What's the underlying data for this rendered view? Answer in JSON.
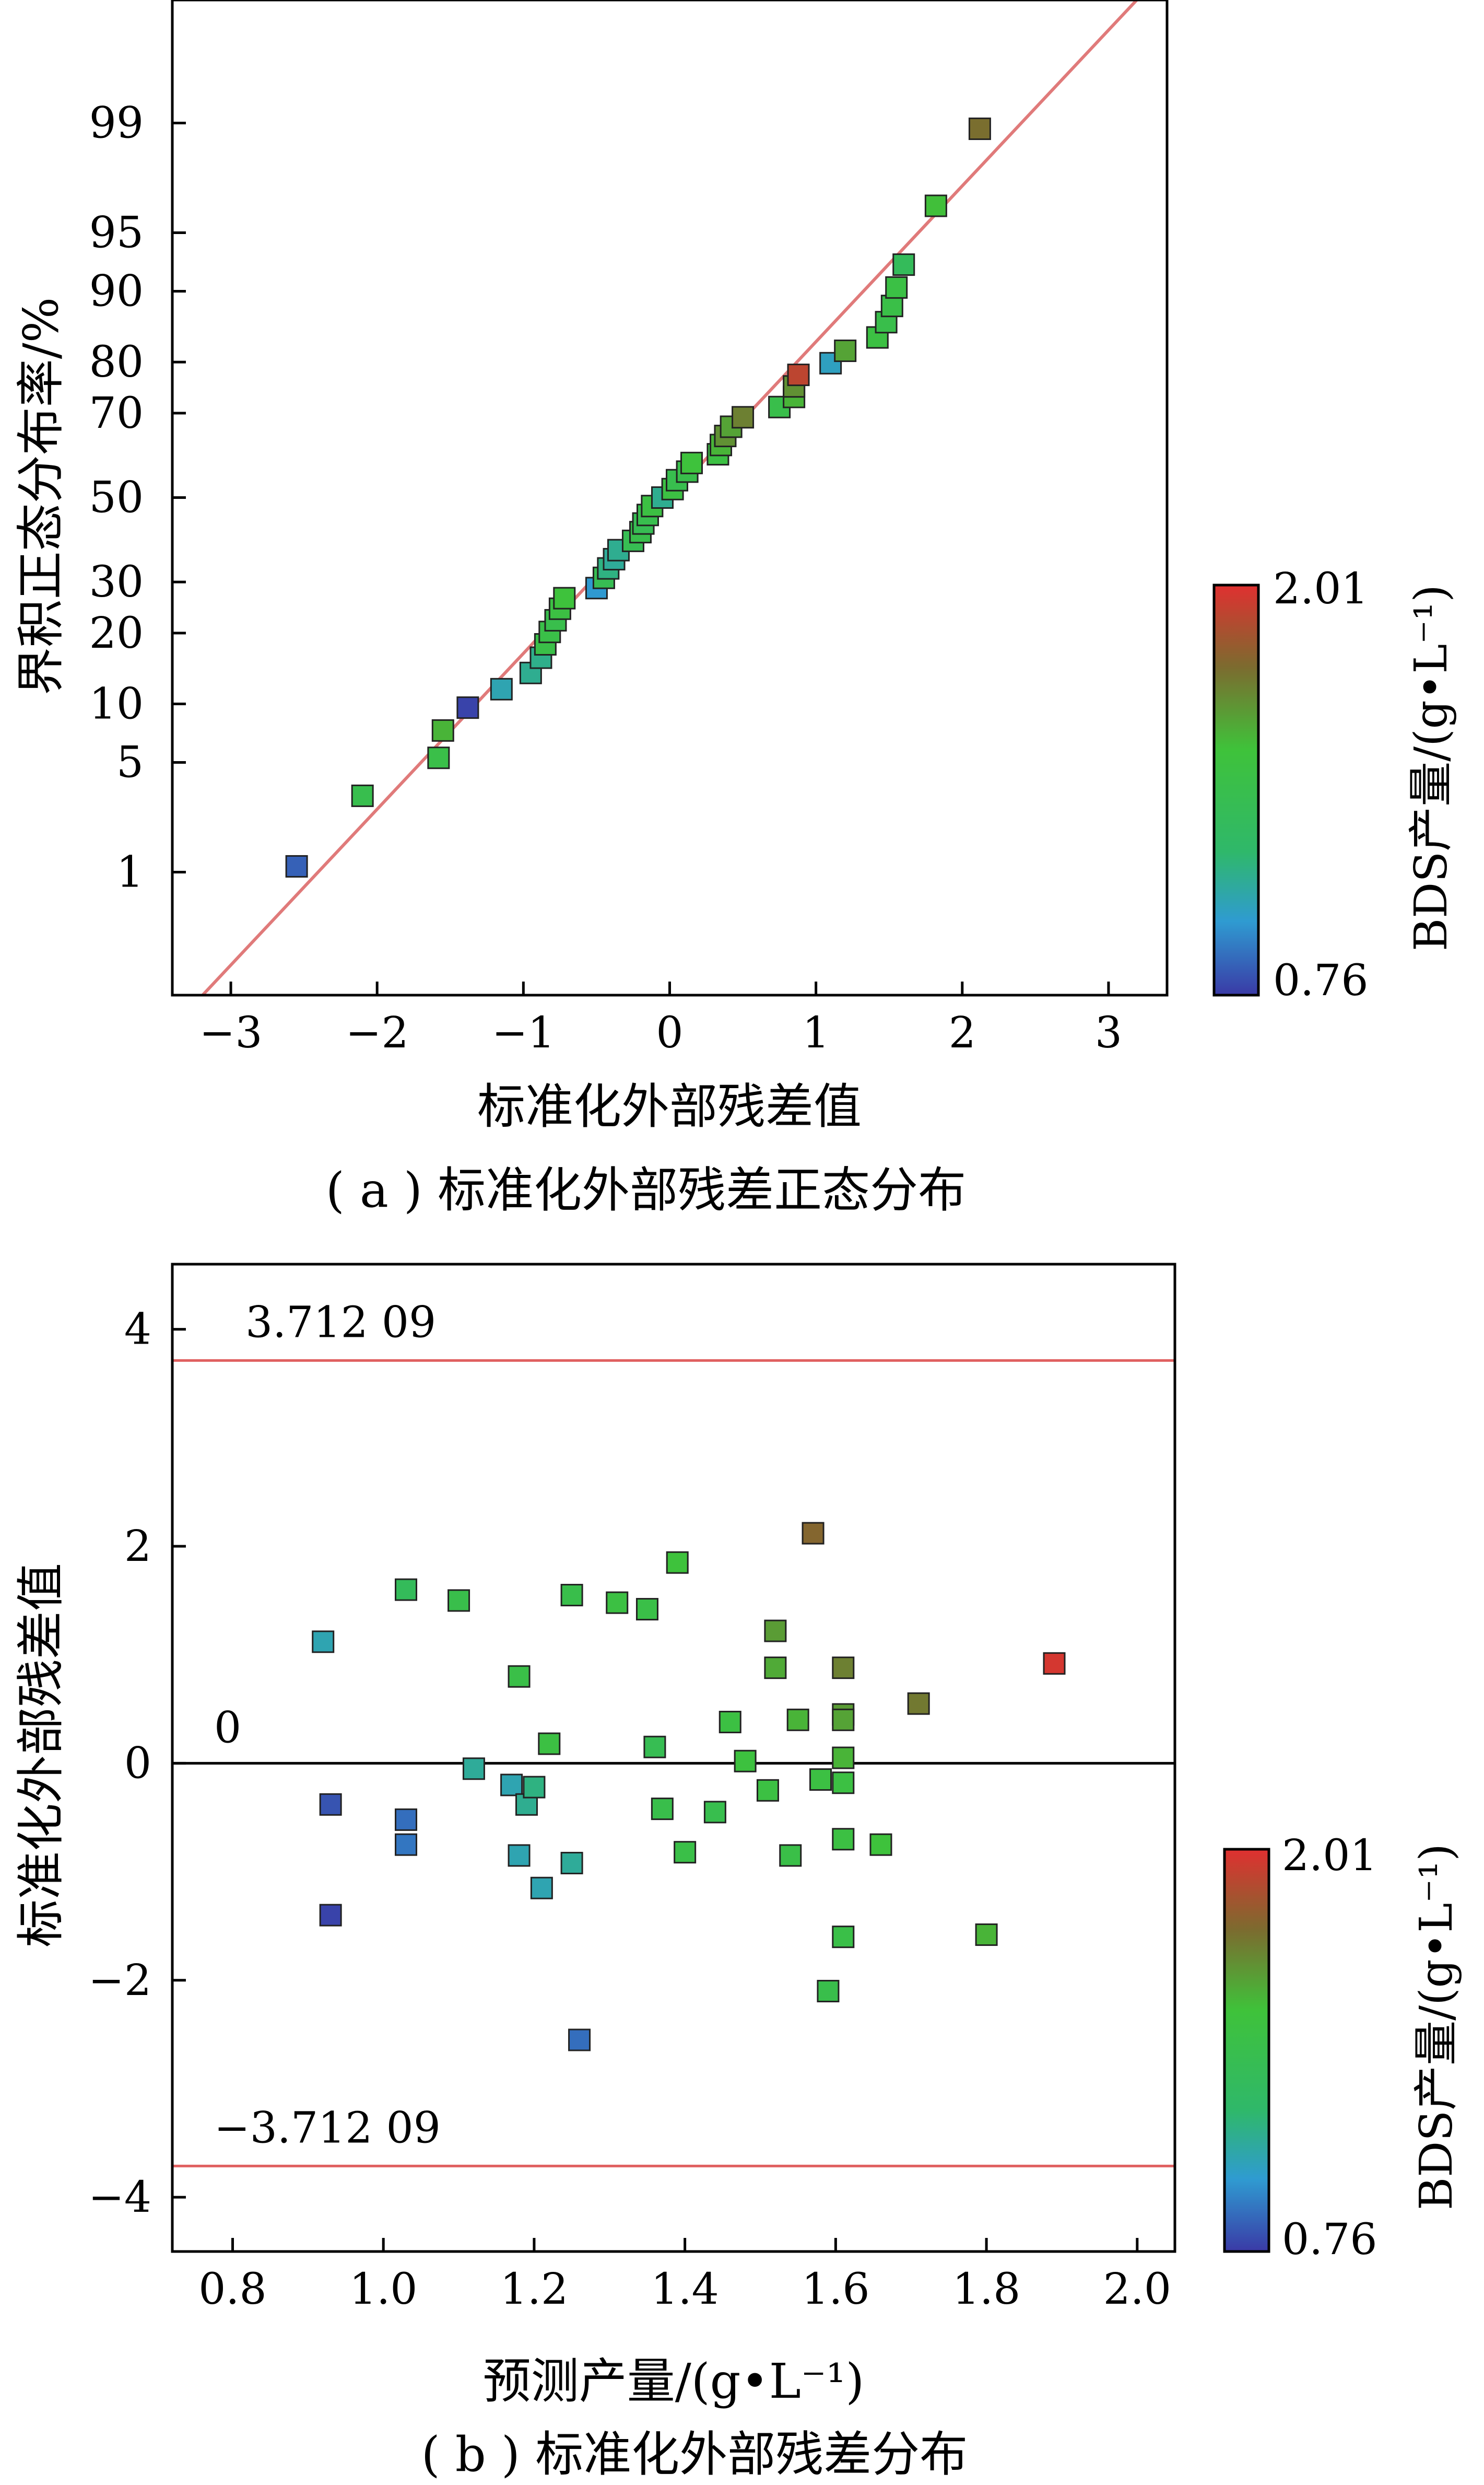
{
  "colorbar": {
    "title": "BDS产量/(g•L⁻¹)",
    "min": 0.76,
    "max": 2.01,
    "min_label": "0.76",
    "max_label": "2.01",
    "colors": [
      "#3a3aa6",
      "#2f9bd1",
      "#2fb86a",
      "#3fc23a",
      "#7c6b2f",
      "#e03030"
    ]
  },
  "chart_data": [
    {
      "type": "scatter",
      "caption": "( a ) 标准化外部残差正态分布",
      "xlabel": "标准化外部残差值",
      "ylabel": "界积正态分布率/%",
      "xlim": [
        -3.4,
        3.4
      ],
      "x_ticks": [
        -3,
        -2,
        -1,
        0,
        1,
        2,
        3
      ],
      "x_tick_labels": [
        "−3",
        "−2",
        "−1",
        "0",
        "1",
        "2",
        "3"
      ],
      "y_scale": "normal-probability",
      "ylim": [
        0.1,
        99.9
      ],
      "y_ticks": [
        1,
        5,
        10,
        20,
        30,
        50,
        70,
        80,
        90,
        95,
        99
      ],
      "y_tick_labels": [
        "1",
        "5",
        "10",
        "20",
        "30",
        "50",
        "70",
        "80",
        "90",
        "95",
        "99"
      ],
      "reference_line": {
        "x": [
          -3.4,
          3.4
        ],
        "y": [
          0.05,
          99.95
        ],
        "color": "#e07a7a"
      },
      "points": [
        {
          "x": -2.55,
          "y": 1.1,
          "c": 0.85
        },
        {
          "x": -2.1,
          "y": 3.2,
          "c": 1.38
        },
        {
          "x": -1.58,
          "y": 5.3,
          "c": 1.41
        },
        {
          "x": -1.55,
          "y": 7.4,
          "c": 1.55
        },
        {
          "x": -1.38,
          "y": 9.6,
          "c": 0.78
        },
        {
          "x": -1.15,
          "y": 11.7,
          "c": 1.05
        },
        {
          "x": -0.95,
          "y": 13.8,
          "c": 1.12
        },
        {
          "x": -0.88,
          "y": 16.0,
          "c": 1.13
        },
        {
          "x": -0.85,
          "y": 18.1,
          "c": 1.42
        },
        {
          "x": -0.82,
          "y": 20.2,
          "c": 1.42
        },
        {
          "x": -0.78,
          "y": 22.3,
          "c": 1.39
        },
        {
          "x": -0.75,
          "y": 24.5,
          "c": 1.45
        },
        {
          "x": -0.72,
          "y": 26.6,
          "c": 1.5
        },
        {
          "x": -0.5,
          "y": 28.7,
          "c": 0.98
        },
        {
          "x": -0.45,
          "y": 30.9,
          "c": 1.35
        },
        {
          "x": -0.42,
          "y": 33.0,
          "c": 1.15
        },
        {
          "x": -0.38,
          "y": 35.1,
          "c": 1.1
        },
        {
          "x": -0.35,
          "y": 37.2,
          "c": 1.12
        },
        {
          "x": -0.25,
          "y": 39.4,
          "c": 1.35
        },
        {
          "x": -0.2,
          "y": 41.5,
          "c": 1.4
        },
        {
          "x": -0.18,
          "y": 43.6,
          "c": 1.35
        },
        {
          "x": -0.15,
          "y": 45.7,
          "c": 1.38
        },
        {
          "x": -0.12,
          "y": 47.9,
          "c": 1.45
        },
        {
          "x": -0.05,
          "y": 50.0,
          "c": 1.12
        },
        {
          "x": 0.02,
          "y": 52.1,
          "c": 1.45
        },
        {
          "x": 0.05,
          "y": 54.3,
          "c": 1.38
        },
        {
          "x": 0.12,
          "y": 56.4,
          "c": 1.4
        },
        {
          "x": 0.15,
          "y": 58.5,
          "c": 1.5
        },
        {
          "x": 0.33,
          "y": 60.6,
          "c": 1.45
        },
        {
          "x": 0.35,
          "y": 62.8,
          "c": 1.55
        },
        {
          "x": 0.38,
          "y": 64.9,
          "c": 1.65
        },
        {
          "x": 0.42,
          "y": 67.0,
          "c": 1.6
        },
        {
          "x": 0.5,
          "y": 69.1,
          "c": 1.7
        },
        {
          "x": 0.75,
          "y": 71.3,
          "c": 1.4
        },
        {
          "x": 0.85,
          "y": 73.4,
          "c": 1.55
        },
        {
          "x": 0.85,
          "y": 75.5,
          "c": 1.65
        },
        {
          "x": 0.88,
          "y": 77.7,
          "c": 1.92
        },
        {
          "x": 1.1,
          "y": 79.8,
          "c": 1.02
        },
        {
          "x": 1.2,
          "y": 81.9,
          "c": 1.6
        },
        {
          "x": 1.42,
          "y": 84.0,
          "c": 1.45
        },
        {
          "x": 1.48,
          "y": 86.2,
          "c": 1.4
        },
        {
          "x": 1.52,
          "y": 88.3,
          "c": 1.42
        },
        {
          "x": 1.55,
          "y": 90.4,
          "c": 1.44
        },
        {
          "x": 1.6,
          "y": 92.6,
          "c": 1.3
        },
        {
          "x": 1.82,
          "y": 96.5,
          "c": 1.52
        },
        {
          "x": 2.12,
          "y": 98.9,
          "c": 1.75
        }
      ]
    },
    {
      "type": "scatter",
      "caption": "( b ) 标准化外部残差分布",
      "xlabel": "预测产量/(g•L⁻¹)",
      "ylabel": "标准化外部残差值",
      "xlim": [
        0.72,
        2.05
      ],
      "ylim": [
        -4.5,
        4.6
      ],
      "x_ticks": [
        0.8,
        1.0,
        1.2,
        1.4,
        1.6,
        1.8,
        2.0
      ],
      "x_tick_labels": [
        "0.8",
        "1.0",
        "1.2",
        "1.4",
        "1.6",
        "1.8",
        "2.0"
      ],
      "y_ticks": [
        -4,
        -2,
        0,
        2,
        4
      ],
      "y_tick_labels": [
        "−4",
        "−2",
        "0",
        "2",
        "4"
      ],
      "reference_lines": [
        {
          "y": 3.71209,
          "label": "3.712 09",
          "color": "#e06060"
        },
        {
          "y": 0,
          "label": "0",
          "color": "#000000"
        },
        {
          "y": -3.71209,
          "label": "−3.712 09",
          "color": "#e06060"
        }
      ],
      "points": [
        {
          "x": 0.92,
          "y": 1.12,
          "c": 1.05
        },
        {
          "x": 0.93,
          "y": -0.38,
          "c": 0.82
        },
        {
          "x": 0.93,
          "y": -1.4,
          "c": 0.78
        },
        {
          "x": 1.03,
          "y": 1.6,
          "c": 1.3
        },
        {
          "x": 1.03,
          "y": -0.52,
          "c": 0.88
        },
        {
          "x": 1.03,
          "y": -0.75,
          "c": 0.9
        },
        {
          "x": 1.1,
          "y": 1.5,
          "c": 1.4
        },
        {
          "x": 1.12,
          "y": -0.05,
          "c": 1.1
        },
        {
          "x": 1.17,
          "y": -0.2,
          "c": 1.05
        },
        {
          "x": 1.18,
          "y": 0.8,
          "c": 1.42
        },
        {
          "x": 1.18,
          "y": -0.85,
          "c": 1.05
        },
        {
          "x": 1.19,
          "y": -0.38,
          "c": 1.12
        },
        {
          "x": 1.2,
          "y": -0.22,
          "c": 1.15
        },
        {
          "x": 1.21,
          "y": -1.15,
          "c": 1.05
        },
        {
          "x": 1.22,
          "y": 0.18,
          "c": 1.45
        },
        {
          "x": 1.25,
          "y": 1.55,
          "c": 1.4
        },
        {
          "x": 1.25,
          "y": -0.92,
          "c": 1.1
        },
        {
          "x": 1.26,
          "y": -2.55,
          "c": 0.88
        },
        {
          "x": 1.31,
          "y": 1.48,
          "c": 1.45
        },
        {
          "x": 1.35,
          "y": 1.42,
          "c": 1.42
        },
        {
          "x": 1.36,
          "y": 0.15,
          "c": 1.35
        },
        {
          "x": 1.37,
          "y": -0.42,
          "c": 1.4
        },
        {
          "x": 1.39,
          "y": 1.85,
          "c": 1.5
        },
        {
          "x": 1.4,
          "y": -0.82,
          "c": 1.42
        },
        {
          "x": 1.44,
          "y": -0.45,
          "c": 1.38
        },
        {
          "x": 1.46,
          "y": 0.38,
          "c": 1.45
        },
        {
          "x": 1.48,
          "y": 0.02,
          "c": 1.48
        },
        {
          "x": 1.51,
          "y": -0.25,
          "c": 1.45
        },
        {
          "x": 1.52,
          "y": 1.22,
          "c": 1.62
        },
        {
          "x": 1.52,
          "y": 0.88,
          "c": 1.58
        },
        {
          "x": 1.54,
          "y": -0.85,
          "c": 1.42
        },
        {
          "x": 1.55,
          "y": 0.4,
          "c": 1.55
        },
        {
          "x": 1.57,
          "y": 2.12,
          "c": 1.78
        },
        {
          "x": 1.58,
          "y": -0.15,
          "c": 1.45
        },
        {
          "x": 1.59,
          "y": -2.1,
          "c": 1.4
        },
        {
          "x": 1.61,
          "y": 0.88,
          "c": 1.7
        },
        {
          "x": 1.61,
          "y": 0.45,
          "c": 1.62
        },
        {
          "x": 1.61,
          "y": 0.4,
          "c": 1.6
        },
        {
          "x": 1.61,
          "y": 0.05,
          "c": 1.55
        },
        {
          "x": 1.61,
          "y": -0.18,
          "c": 1.45
        },
        {
          "x": 1.61,
          "y": -0.7,
          "c": 1.45
        },
        {
          "x": 1.61,
          "y": -1.6,
          "c": 1.42
        },
        {
          "x": 1.66,
          "y": -0.75,
          "c": 1.5
        },
        {
          "x": 1.71,
          "y": 0.55,
          "c": 1.72
        },
        {
          "x": 1.8,
          "y": -1.58,
          "c": 1.55
        },
        {
          "x": 1.89,
          "y": 0.92,
          "c": 1.98
        }
      ]
    }
  ]
}
